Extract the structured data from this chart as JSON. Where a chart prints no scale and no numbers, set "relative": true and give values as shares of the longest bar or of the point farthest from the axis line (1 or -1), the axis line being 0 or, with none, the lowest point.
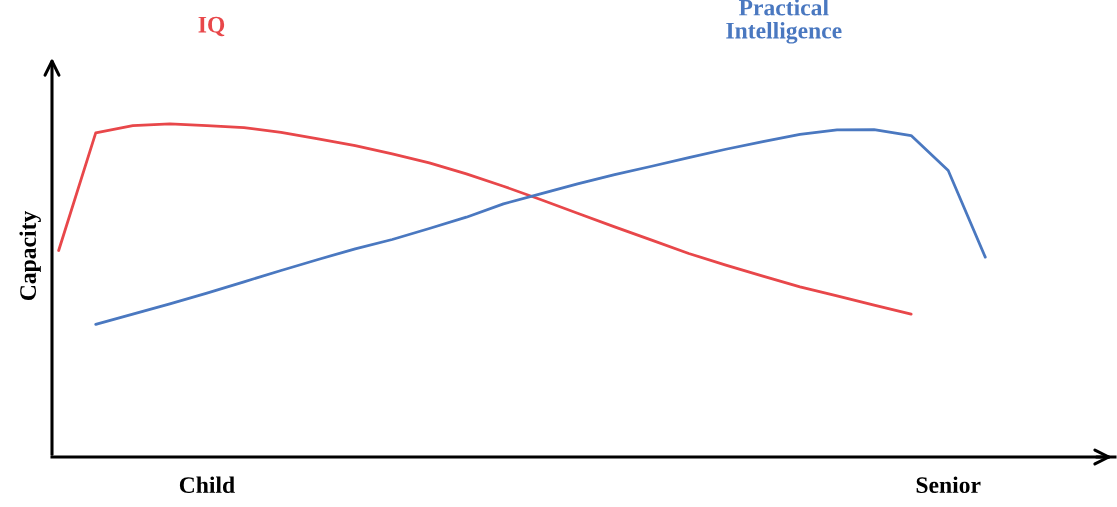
{
  "chart_data": {
    "type": "line",
    "relative": true,
    "ylabel": "Capacity",
    "categories": [
      null,
      null,
      null,
      null,
      "Child",
      null,
      null,
      null,
      null,
      null,
      null,
      null,
      null,
      null,
      null,
      null,
      null,
      null,
      null,
      null,
      null,
      null,
      null,
      null,
      "Senior",
      null
    ],
    "legend": false,
    "grid": false,
    "marker": "none",
    "line_style": "solid",
    "series": [
      {
        "name": "IQ",
        "color": "#e8474a",
        "values": [
          0.62,
          0.973,
          0.995,
          1.0,
          0.995,
          0.989,
          0.975,
          0.955,
          0.935,
          0.91,
          0.883,
          0.85,
          0.813,
          0.773,
          0.732,
          0.691,
          0.651,
          0.611,
          0.576,
          0.543,
          0.511,
          0.484,
          0.456,
          0.429,
          null,
          null
        ]
      },
      {
        "name": "Practical Intelligence",
        "color": "#4a78c0",
        "values": [
          null,
          0.398,
          0.429,
          0.46,
          0.492,
          0.526,
          0.56,
          0.593,
          0.625,
          0.653,
          0.686,
          0.72,
          0.76,
          0.79,
          0.82,
          0.848,
          0.873,
          0.899,
          0.924,
          0.947,
          0.969,
          0.982,
          0.983,
          0.965,
          0.86,
          0.6
        ]
      }
    ]
  }
}
